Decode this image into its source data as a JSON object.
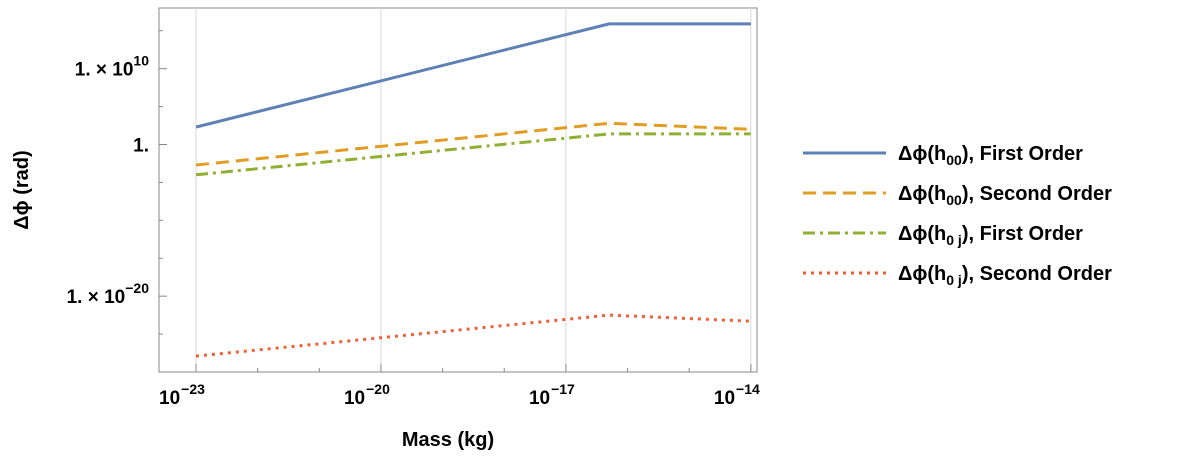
{
  "chart_data": {
    "type": "line",
    "xlabel": "Mass (kg)",
    "ylabel": "Δϕ (rad)",
    "x_scale": "log",
    "y_scale": "log",
    "xlim_log10": [
      -23.6,
      -13.9
    ],
    "ylim_log10": [
      -30.0,
      18.0
    ],
    "grid": "vertical",
    "legend_placement": "right",
    "x_ticks": [
      {
        "log10": -23,
        "label": "10",
        "exp": "−23"
      },
      {
        "log10": -20,
        "label": "10",
        "exp": "−20"
      },
      {
        "log10": -17,
        "label": "10",
        "exp": "−17"
      },
      {
        "log10": -14,
        "label": "10",
        "exp": "−14"
      }
    ],
    "y_ticks": [
      {
        "log10": 10,
        "label": "1. × 10",
        "exp": "10"
      },
      {
        "log10": 0,
        "label": "1.",
        "exp": ""
      },
      {
        "log10": -20,
        "label": "1. × 10",
        "exp": "−20"
      }
    ],
    "series": [
      {
        "name": "Δϕ(h00), First Order",
        "legend": {
          "main": "Δϕ(h",
          "sub": "00",
          "tail": "), First Order"
        },
        "color": "#5e81b5",
        "dash": "solid",
        "points_log10": [
          [
            -23,
            2.3
          ],
          [
            -16.3,
            15.9
          ],
          [
            -14,
            15.9
          ]
        ]
      },
      {
        "name": "Δϕ(h00), Second Order",
        "legend": {
          "main": "Δϕ(h",
          "sub": "00",
          "tail": "), Second Order"
        },
        "color": "#e19c24",
        "dash": "dashed",
        "points_log10": [
          [
            -23,
            -2.7
          ],
          [
            -16.3,
            2.8
          ],
          [
            -14,
            2.0
          ]
        ]
      },
      {
        "name": "Δϕ(h0j), First Order",
        "legend": {
          "main": "Δϕ(h",
          "sub": "0 j",
          "tail": "), First Order"
        },
        "color": "#8fb032",
        "dash": "dashdot",
        "points_log10": [
          [
            -23,
            -4.0
          ],
          [
            -16.3,
            1.4
          ],
          [
            -14,
            1.4
          ]
        ]
      },
      {
        "name": "Δϕ(h0j), Second Order",
        "legend": {
          "main": "Δϕ(h",
          "sub": "0 j",
          "tail": "), Second Order"
        },
        "color": "#eb6235",
        "dash": "dotted",
        "points_log10": [
          [
            -23,
            -27.9
          ],
          [
            -16.3,
            -22.5
          ],
          [
            -14,
            -23.3
          ]
        ]
      }
    ]
  }
}
